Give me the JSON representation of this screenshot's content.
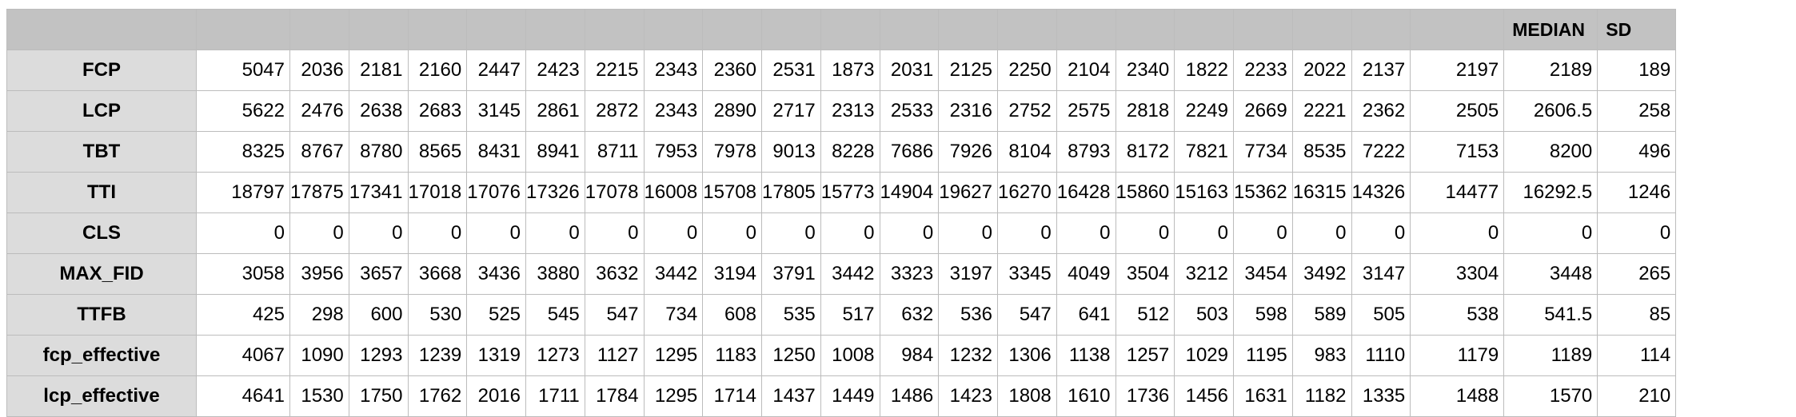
{
  "header": {
    "labels": [
      "",
      "",
      "",
      "",
      "",
      "",
      "",
      "",
      "",
      "",
      "",
      "",
      "",
      "",
      "",
      "",
      "",
      "",
      "",
      "",
      "",
      "",
      "MEDIAN",
      "SD"
    ]
  },
  "rows": [
    {
      "label": "FCP",
      "values": [
        "5047",
        "2036",
        "2181",
        "2160",
        "2447",
        "2423",
        "2215",
        "2343",
        "2360",
        "2531",
        "1873",
        "2031",
        "2125",
        "2250",
        "2104",
        "2340",
        "1822",
        "2233",
        "2022",
        "2137",
        "2197",
        "2189",
        "189"
      ]
    },
    {
      "label": "LCP",
      "values": [
        "5622",
        "2476",
        "2638",
        "2683",
        "3145",
        "2861",
        "2872",
        "2343",
        "2890",
        "2717",
        "2313",
        "2533",
        "2316",
        "2752",
        "2575",
        "2818",
        "2249",
        "2669",
        "2221",
        "2362",
        "2505",
        "2606.5",
        "258"
      ]
    },
    {
      "label": "TBT",
      "values": [
        "8325",
        "8767",
        "8780",
        "8565",
        "8431",
        "8941",
        "8711",
        "7953",
        "7978",
        "9013",
        "8228",
        "7686",
        "7926",
        "8104",
        "8793",
        "8172",
        "7821",
        "7734",
        "8535",
        "7222",
        "7153",
        "8200",
        "496"
      ]
    },
    {
      "label": "TTI",
      "values": [
        "18797",
        "17875",
        "17341",
        "17018",
        "17076",
        "17326",
        "17078",
        "16008",
        "15708",
        "17805",
        "15773",
        "14904",
        "19627",
        "16270",
        "16428",
        "15860",
        "15163",
        "15362",
        "16315",
        "14326",
        "14477",
        "16292.5",
        "1246"
      ]
    },
    {
      "label": "CLS",
      "values": [
        "0",
        "0",
        "0",
        "0",
        "0",
        "0",
        "0",
        "0",
        "0",
        "0",
        "0",
        "0",
        "0",
        "0",
        "0",
        "0",
        "0",
        "0",
        "0",
        "0",
        "0",
        "0",
        "0"
      ]
    },
    {
      "label": "MAX_FID",
      "values": [
        "3058",
        "3956",
        "3657",
        "3668",
        "3436",
        "3880",
        "3632",
        "3442",
        "3194",
        "3791",
        "3442",
        "3323",
        "3197",
        "3345",
        "4049",
        "3504",
        "3212",
        "3454",
        "3492",
        "3147",
        "3304",
        "3448",
        "265"
      ]
    },
    {
      "label": "TTFB",
      "values": [
        "425",
        "298",
        "600",
        "530",
        "525",
        "545",
        "547",
        "734",
        "608",
        "535",
        "517",
        "632",
        "536",
        "547",
        "641",
        "512",
        "503",
        "598",
        "589",
        "505",
        "538",
        "541.5",
        "85"
      ]
    },
    {
      "label": "fcp_effective",
      "values": [
        "4067",
        "1090",
        "1293",
        "1239",
        "1319",
        "1273",
        "1127",
        "1295",
        "1183",
        "1250",
        "1008",
        "984",
        "1232",
        "1306",
        "1138",
        "1257",
        "1029",
        "1195",
        "983",
        "1110",
        "1179",
        "1189",
        "114"
      ]
    },
    {
      "label": "lcp_effective",
      "values": [
        "4641",
        "1530",
        "1750",
        "1762",
        "2016",
        "1711",
        "1784",
        "1295",
        "1714",
        "1437",
        "1449",
        "1486",
        "1423",
        "1808",
        "1610",
        "1736",
        "1456",
        "1631",
        "1182",
        "1335",
        "1488",
        "1570",
        "210"
      ]
    }
  ]
}
